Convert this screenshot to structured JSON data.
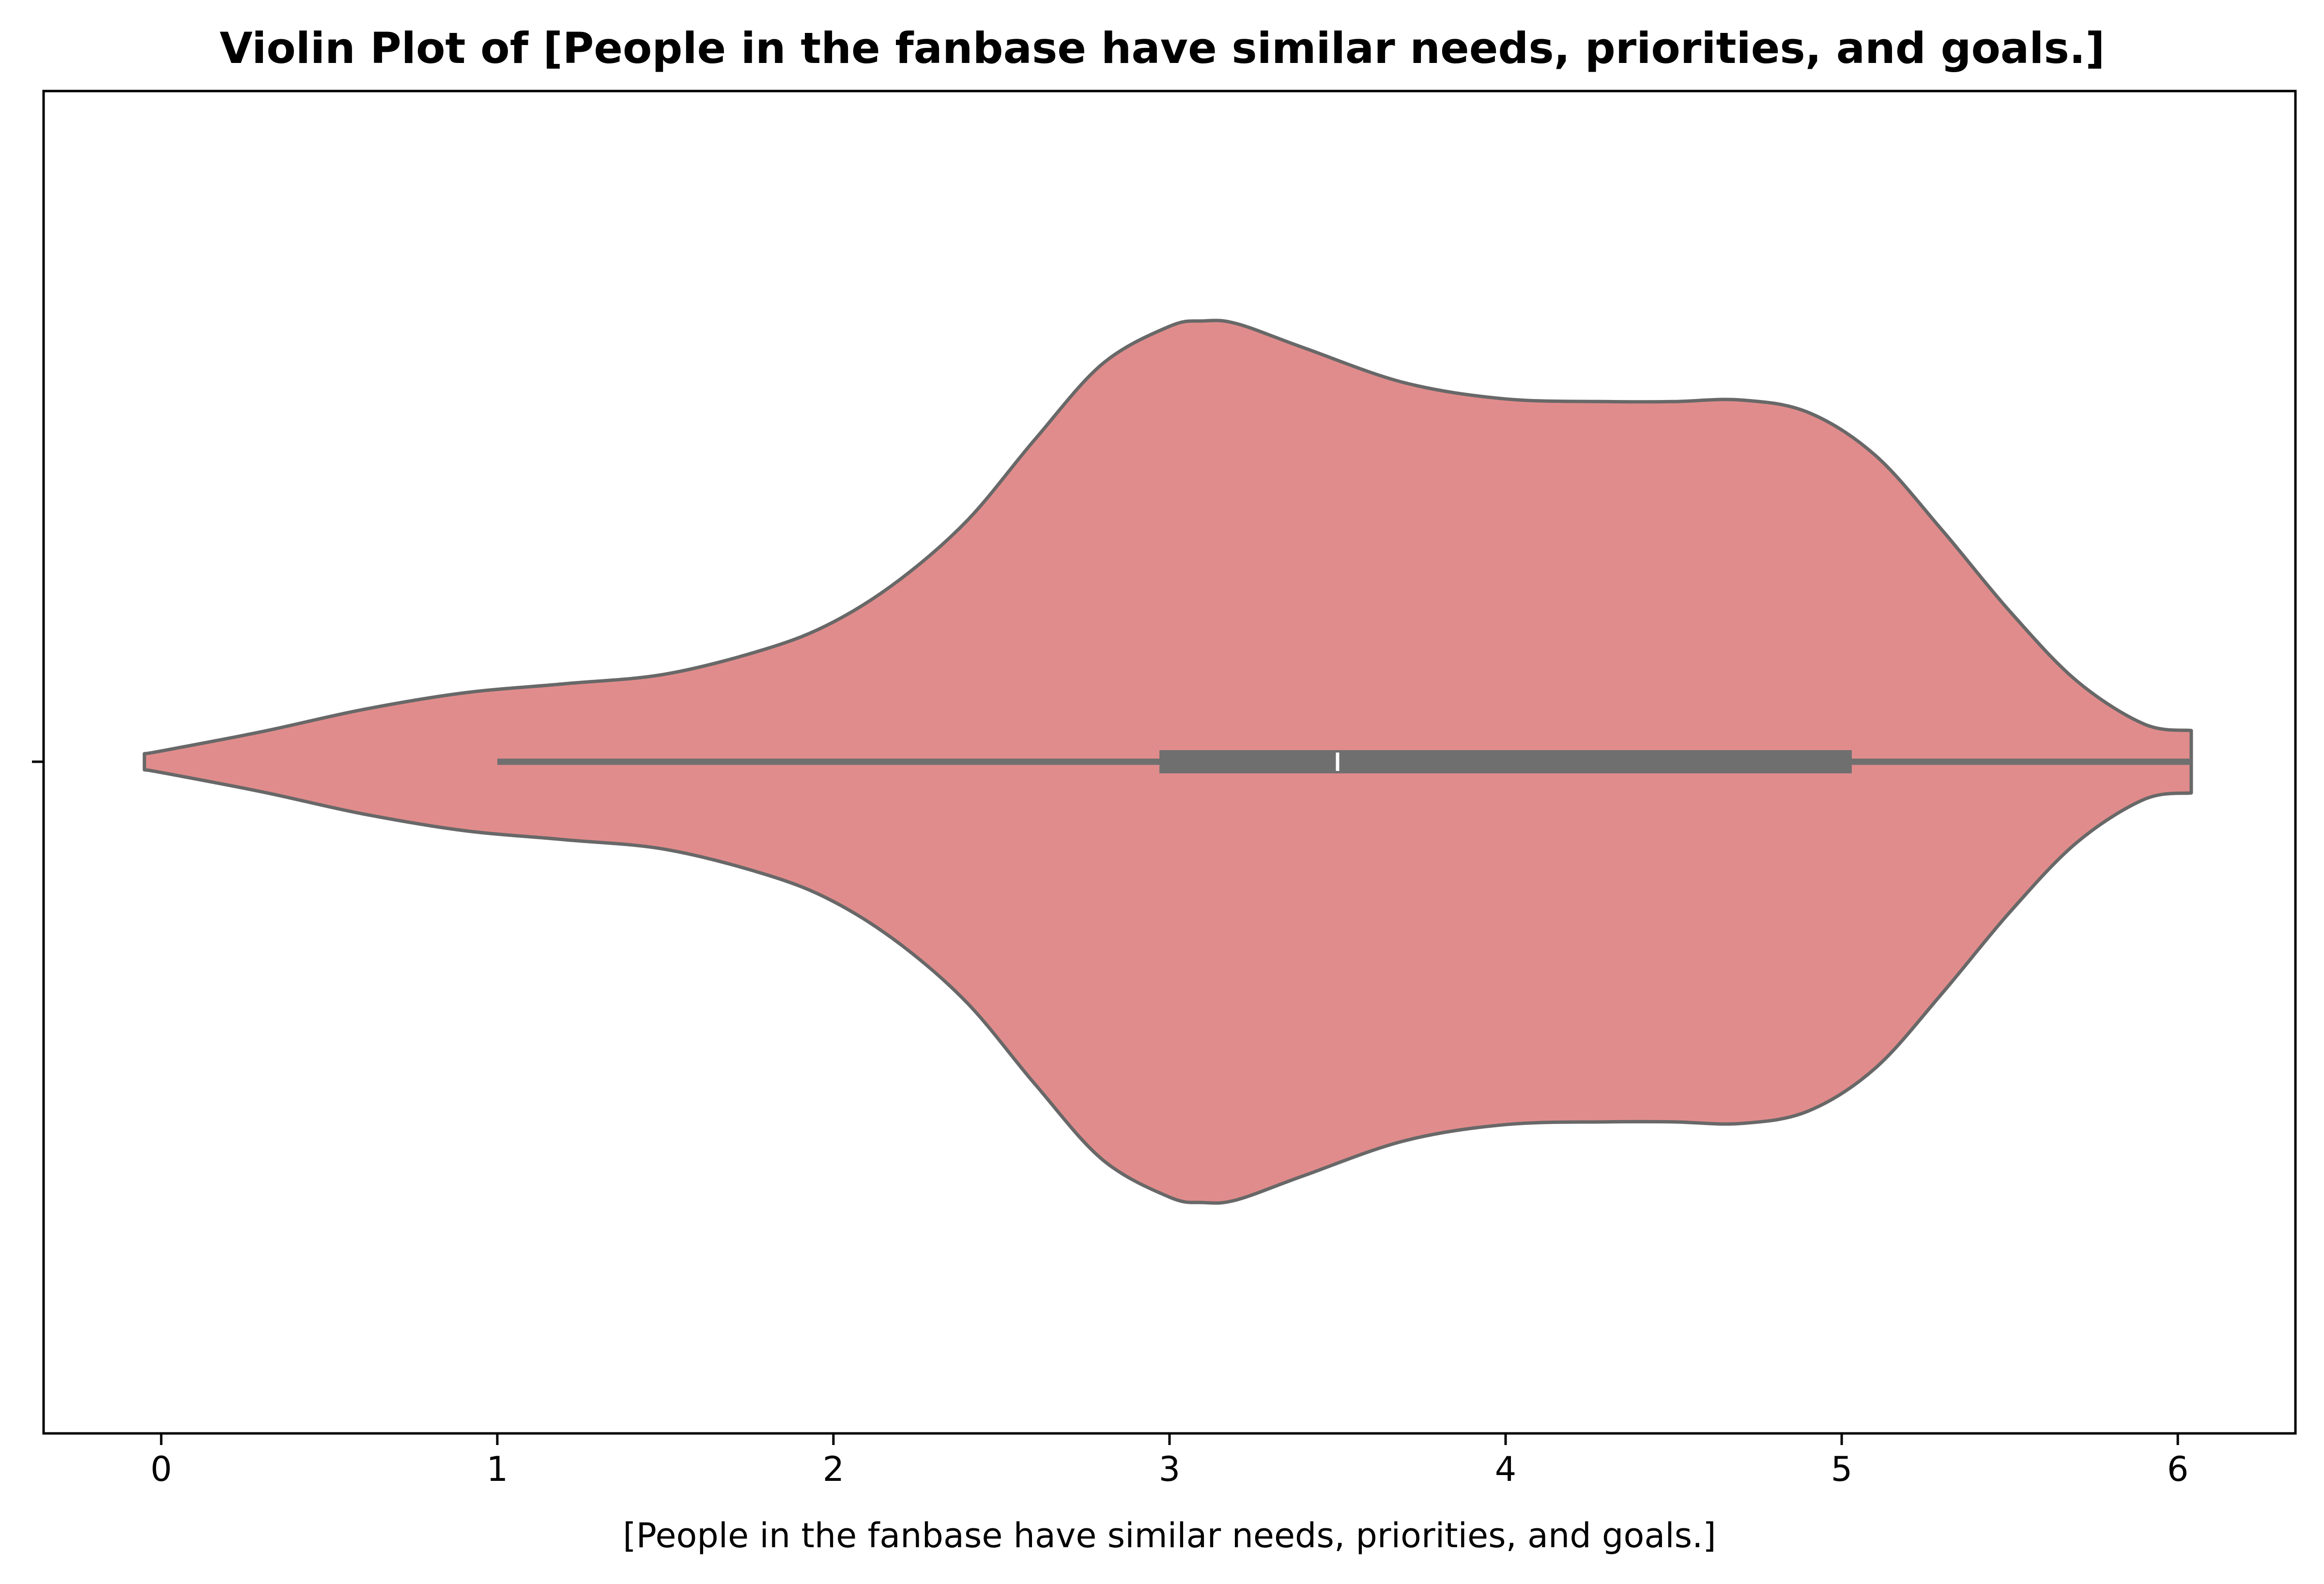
{
  "chart_data": {
    "type": "violin",
    "title": "Violin Plot of [People in the fanbase have similar needs, priorities, and goals.]",
    "xlabel": "[People in the fanbase have similar needs, priorities, and goals.]",
    "ylabel": "",
    "xlim": [
      -0.35,
      6.35
    ],
    "xticks": [
      "0",
      "1",
      "2",
      "3",
      "4",
      "5",
      "6"
    ],
    "grid": false,
    "colors": {
      "fill": "#e18c8c",
      "edge": "#686868",
      "box": "#6f6f6f",
      "median": "#ffffff"
    },
    "density": {
      "x": [
        -0.05,
        0.0,
        0.3,
        0.6,
        0.9,
        1.2,
        1.5,
        1.8,
        2.0,
        2.2,
        2.4,
        2.6,
        2.8,
        3.0,
        3.1,
        3.2,
        3.4,
        3.7,
        4.0,
        4.3,
        4.5,
        4.7,
        4.9,
        5.1,
        5.3,
        5.5,
        5.7,
        5.9,
        6.04
      ],
      "half_width": [
        0.015,
        0.02,
        0.056,
        0.097,
        0.128,
        0.145,
        0.163,
        0.21,
        0.26,
        0.34,
        0.45,
        0.6,
        0.74,
        0.81,
        0.82,
        0.815,
        0.77,
        0.705,
        0.675,
        0.67,
        0.67,
        0.673,
        0.65,
        0.57,
        0.43,
        0.28,
        0.15,
        0.07,
        0.058
      ]
    },
    "box": {
      "q1": 2.97,
      "median": 3.5,
      "q3": 5.03,
      "whisker_low": 1.0,
      "whisker_high": 6.04
    }
  }
}
